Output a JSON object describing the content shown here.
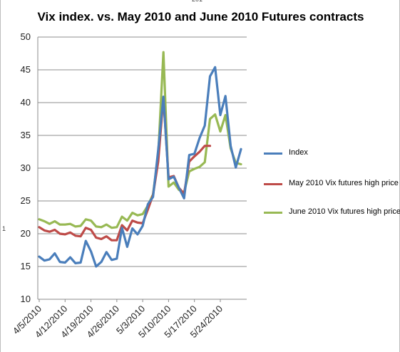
{
  "chart_data": {
    "type": "line",
    "title": "Vix index. vs. May 2010 and June 2010 Futures contracts",
    "xlabel": "",
    "ylabel": "",
    "ylim": [
      10,
      50
    ],
    "yticks": [
      "10",
      "15",
      "20",
      "25",
      "30",
      "35",
      "40",
      "45",
      "50"
    ],
    "xtick_labels": [
      "4/5/2010",
      "4/12/2010",
      "4/19/2010",
      "4/26/2010",
      "5/3/2010",
      "5/10/2010",
      "5/17/2010",
      "5/24/2010"
    ],
    "grid": "horizontal",
    "legend_position": "right",
    "x": [
      "4/5/2010",
      "4/6/2010",
      "4/7/2010",
      "4/8/2010",
      "4/9/2010",
      "4/12/2010",
      "4/13/2010",
      "4/14/2010",
      "4/15/2010",
      "4/16/2010",
      "4/19/2010",
      "4/20/2010",
      "4/21/2010",
      "4/22/2010",
      "4/23/2010",
      "4/26/2010",
      "4/27/2010",
      "4/28/2010",
      "4/29/2010",
      "4/30/2010",
      "5/3/2010",
      "5/4/2010",
      "5/5/2010",
      "5/6/2010",
      "5/7/2010",
      "5/10/2010",
      "5/11/2010",
      "5/12/2010",
      "5/13/2010",
      "5/14/2010",
      "5/17/2010",
      "5/18/2010",
      "5/19/2010",
      "5/20/2010",
      "5/21/2010",
      "5/24/2010",
      "5/25/2010",
      "5/26/2010",
      "5/27/2010",
      "5/28/2010"
    ],
    "series": [
      {
        "name": "Index",
        "color": "#4a7ebb",
        "values": [
          16.5,
          15.9,
          16.1,
          17.0,
          15.7,
          15.6,
          16.4,
          15.5,
          15.6,
          18.9,
          17.3,
          15.0,
          15.7,
          17.2,
          16.0,
          16.2,
          20.9,
          18.0,
          20.8,
          19.9,
          21.2,
          24.5,
          25.6,
          32.8,
          40.9,
          28.3,
          28.7,
          27.0,
          25.4,
          32.0,
          32.2,
          34.6,
          36.5,
          44.0,
          45.4,
          38.1,
          41.0,
          33.4,
          30.1,
          32.9
        ]
      },
      {
        "name": "May 2010 Vix futures high price",
        "color": "#be4b48",
        "values": [
          21.0,
          20.5,
          20.3,
          20.6,
          20.0,
          19.9,
          20.2,
          19.7,
          19.6,
          20.9,
          20.6,
          19.4,
          19.2,
          19.6,
          19.0,
          19.0,
          21.3,
          20.5,
          22.0,
          21.7,
          21.6,
          23.7,
          25.9,
          31.0,
          40.8,
          28.6,
          28.8,
          27.0,
          26.1,
          31.0,
          31.8,
          32.5,
          33.4,
          33.4,
          null,
          null,
          null,
          null,
          null,
          null
        ]
      },
      {
        "name": "June 2010 Vix futures high price",
        "color": "#98b954",
        "values": [
          22.2,
          21.9,
          21.5,
          21.9,
          21.4,
          21.4,
          21.5,
          21.1,
          21.2,
          22.2,
          22.0,
          21.1,
          21.0,
          21.4,
          20.9,
          21.0,
          22.6,
          22.0,
          23.2,
          22.8,
          23.0,
          24.3,
          26.0,
          32.0,
          47.7,
          27.2,
          27.8,
          26.7,
          26.3,
          29.5,
          29.9,
          30.2,
          30.9,
          37.5,
          38.2,
          35.6,
          38.1,
          33.0,
          30.8,
          30.6
        ]
      }
    ]
  },
  "stray_text": {
    "top": "201",
    "left": "1"
  }
}
